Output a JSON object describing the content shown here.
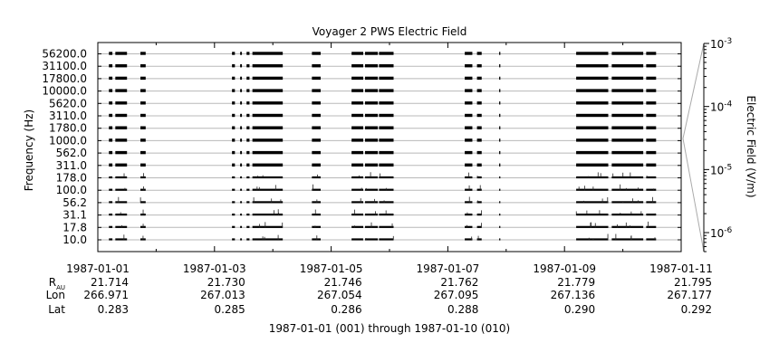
{
  "chart_data": {
    "type": "line",
    "title": "Voyager 2 PWS Electric Field",
    "ylabel": "Frequency (Hz)",
    "ylabel_right": "Electric Field (V/m)",
    "xlabel": "1987-01-01 (001) through 1987-01-10 (010)",
    "frequency_channels": [
      "10.0",
      "17.8",
      "31.1",
      "56.2",
      "100.0",
      "178.0",
      "311.0",
      "562.0",
      "1000.0",
      "1780.0",
      "3110.0",
      "5620.0",
      "10000.0",
      "17800.0",
      "31100.0",
      "56200.0"
    ],
    "x_range": [
      "1987-01-01",
      "1987-01-11"
    ],
    "x_ticks": [
      "1987-01-01",
      "1987-01-03",
      "1987-01-05",
      "1987-01-07",
      "1987-01-09",
      "1987-01-11"
    ],
    "colorbar": {
      "scale": "log",
      "range": [
        5e-07,
        0.001
      ],
      "tick_labels": [
        {
          "base": "10",
          "exp": "-3",
          "value": 0.001
        },
        {
          "base": "10",
          "exp": "-4",
          "value": 0.0001
        },
        {
          "base": "10",
          "exp": "-5",
          "value": 1e-05
        },
        {
          "base": "10",
          "exp": "-6",
          "value": 1e-06
        }
      ]
    },
    "ephemeris": {
      "row_labels": [
        {
          "main": "R",
          "sub": "AU"
        },
        {
          "main": "Lon",
          "sub": ""
        },
        {
          "main": "Lat",
          "sub": ""
        }
      ],
      "columns": [
        {
          "date": "1987-01-01",
          "values": [
            "21.714",
            "266.971",
            "0.283"
          ]
        },
        {
          "date": "1987-01-03",
          "values": [
            "21.730",
            "267.013",
            "0.285"
          ]
        },
        {
          "date": "1987-01-05",
          "values": [
            "21.746",
            "267.054",
            "0.286"
          ]
        },
        {
          "date": "1987-01-07",
          "values": [
            "21.762",
            "267.095",
            "0.288"
          ]
        },
        {
          "date": "1987-01-09",
          "values": [
            "21.779",
            "267.136",
            "0.290"
          ]
        },
        {
          "date": "1987-01-11",
          "values": [
            "21.795",
            "267.177",
            "0.292"
          ]
        }
      ]
    },
    "data_segments": [
      {
        "start": 0.19,
        "end": 0.25
      },
      {
        "start": 0.3,
        "end": 0.5
      },
      {
        "start": 0.73,
        "end": 0.82
      },
      {
        "start": 2.3,
        "end": 2.35
      },
      {
        "start": 2.44,
        "end": 2.47
      },
      {
        "start": 2.55,
        "end": 2.6
      },
      {
        "start": 2.65,
        "end": 3.17
      },
      {
        "start": 3.67,
        "end": 3.82
      },
      {
        "start": 4.35,
        "end": 4.55
      },
      {
        "start": 4.58,
        "end": 4.8
      },
      {
        "start": 4.82,
        "end": 5.07
      },
      {
        "start": 6.29,
        "end": 6.42
      },
      {
        "start": 6.5,
        "end": 6.58
      },
      {
        "start": 6.88,
        "end": 6.9
      },
      {
        "start": 8.2,
        "end": 8.75
      },
      {
        "start": 8.81,
        "end": 9.35
      },
      {
        "start": 9.4,
        "end": 9.57
      }
    ],
    "grid": true
  }
}
